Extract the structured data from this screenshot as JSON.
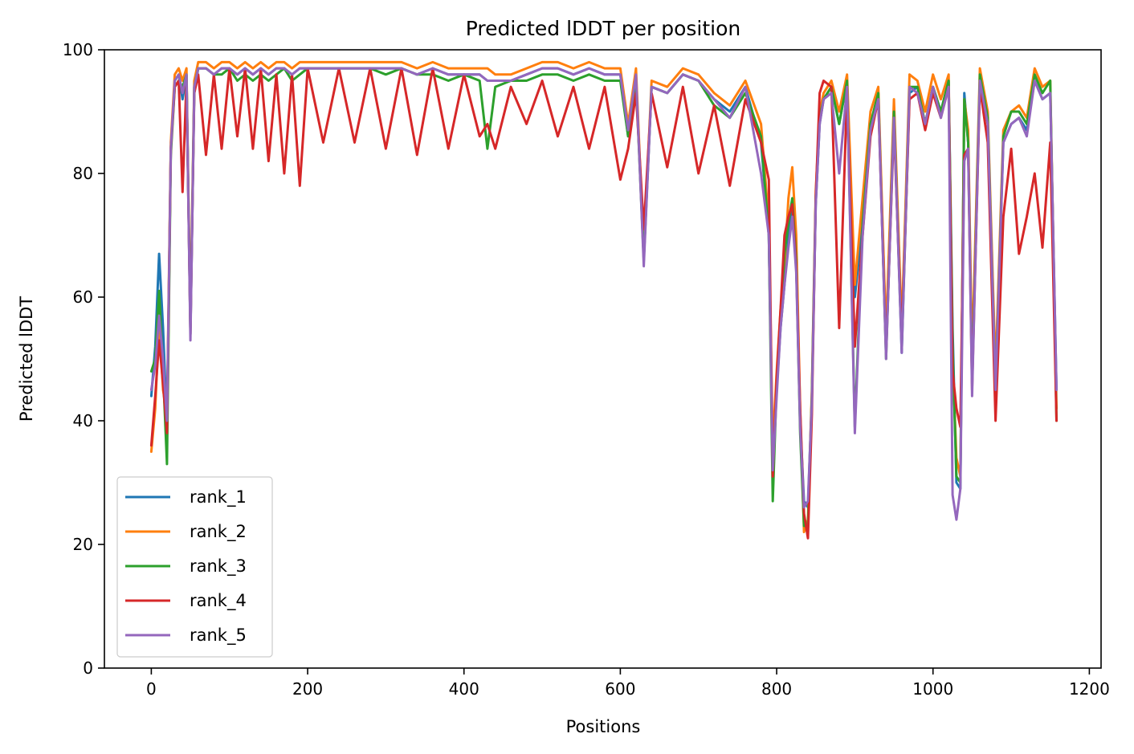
{
  "chart_data": {
    "type": "line",
    "title": "Predicted lDDT per position",
    "xlabel": "Positions",
    "ylabel": "Predicted lDDT",
    "xlim": [
      -60,
      1215
    ],
    "ylim": [
      0,
      100
    ],
    "xticks": [
      0,
      200,
      400,
      600,
      800,
      1000,
      1200
    ],
    "yticks": [
      0,
      20,
      40,
      60,
      80,
      100
    ],
    "grid": false,
    "legend": "lower-left",
    "x": [
      0,
      5,
      10,
      15,
      20,
      25,
      30,
      35,
      40,
      45,
      50,
      55,
      60,
      70,
      80,
      90,
      100,
      110,
      120,
      130,
      140,
      150,
      160,
      170,
      180,
      190,
      200,
      220,
      240,
      260,
      280,
      300,
      320,
      340,
      360,
      380,
      400,
      420,
      430,
      440,
      460,
      480,
      500,
      520,
      540,
      560,
      580,
      600,
      610,
      620,
      630,
      640,
      660,
      680,
      700,
      720,
      740,
      760,
      780,
      790,
      795,
      800,
      805,
      810,
      815,
      820,
      825,
      830,
      835,
      840,
      845,
      850,
      855,
      860,
      870,
      880,
      890,
      900,
      910,
      920,
      930,
      940,
      950,
      960,
      970,
      980,
      990,
      1000,
      1010,
      1020,
      1025,
      1030,
      1035,
      1040,
      1045,
      1050,
      1060,
      1070,
      1080,
      1090,
      1100,
      1110,
      1120,
      1130,
      1140,
      1150,
      1158
    ],
    "series": [
      {
        "name": "rank_1",
        "color": "#1f77b4",
        "values": [
          44,
          52,
          67,
          55,
          39,
          84,
          95,
          96,
          92,
          96,
          54,
          93,
          97,
          97,
          96,
          97,
          97,
          96,
          97,
          96,
          97,
          96,
          97,
          97,
          96,
          97,
          97,
          97,
          97,
          97,
          97,
          97,
          97,
          96,
          97,
          96,
          96,
          96,
          95,
          95,
          95,
          96,
          97,
          97,
          96,
          97,
          96,
          96,
          86,
          96,
          66,
          94,
          93,
          96,
          95,
          92,
          90,
          94,
          85,
          70,
          33,
          45,
          55,
          62,
          70,
          74,
          65,
          40,
          27,
          26,
          44,
          75,
          88,
          92,
          94,
          88,
          95,
          60,
          72,
          88,
          93,
          52,
          90,
          51,
          93,
          94,
          88,
          94,
          90,
          95,
          55,
          30,
          29,
          93,
          85,
          47,
          95,
          88,
          46,
          85,
          88,
          89,
          87,
          95,
          92,
          93,
          45
        ]
      },
      {
        "name": "rank_2",
        "color": "#ff7f0e",
        "values": [
          35,
          42,
          56,
          45,
          41,
          85,
          96,
          97,
          95,
          97,
          56,
          95,
          98,
          98,
          97,
          98,
          98,
          97,
          98,
          97,
          98,
          97,
          98,
          98,
          97,
          98,
          98,
          98,
          98,
          98,
          98,
          98,
          98,
          97,
          98,
          97,
          97,
          97,
          97,
          96,
          96,
          97,
          98,
          98,
          97,
          98,
          97,
          97,
          88,
          97,
          67,
          95,
          94,
          97,
          96,
          93,
          91,
          95,
          88,
          72,
          36,
          48,
          58,
          65,
          76,
          81,
          70,
          42,
          22,
          24,
          45,
          77,
          90,
          93,
          95,
          90,
          96,
          62,
          76,
          90,
          94,
          54,
          92,
          55,
          96,
          95,
          90,
          96,
          92,
          96,
          50,
          34,
          31,
          92,
          87,
          50,
          97,
          90,
          48,
          87,
          90,
          91,
          89,
          97,
          94,
          95,
          42
        ]
      },
      {
        "name": "rank_3",
        "color": "#2ca02c",
        "values": [
          48,
          50,
          61,
          48,
          33,
          83,
          94,
          95,
          94,
          96,
          55,
          94,
          97,
          97,
          96,
          96,
          97,
          95,
          96,
          95,
          96,
          95,
          96,
          97,
          95,
          96,
          97,
          97,
          97,
          97,
          97,
          96,
          97,
          96,
          96,
          95,
          96,
          95,
          84,
          94,
          95,
          95,
          96,
          96,
          95,
          96,
          95,
          95,
          86,
          95,
          66,
          94,
          93,
          96,
          95,
          91,
          89,
          93,
          86,
          70,
          27,
          46,
          56,
          67,
          72,
          76,
          66,
          38,
          23,
          23,
          44,
          76,
          89,
          92,
          94,
          88,
          95,
          39,
          72,
          88,
          93,
          50,
          90,
          52,
          94,
          94,
          88,
          94,
          90,
          95,
          52,
          31,
          30,
          92,
          85,
          46,
          96,
          89,
          45,
          86,
          90,
          90,
          88,
          96,
          93,
          95,
          40
        ]
      },
      {
        "name": "rank_4",
        "color": "#d62728",
        "values": [
          36,
          44,
          53,
          46,
          38,
          84,
          94,
          95,
          77,
          95,
          54,
          93,
          96,
          83,
          96,
          84,
          97,
          86,
          97,
          84,
          97,
          82,
          96,
          80,
          96,
          78,
          97,
          85,
          97,
          85,
          97,
          84,
          97,
          83,
          97,
          84,
          96,
          86,
          88,
          84,
          94,
          88,
          95,
          86,
          94,
          84,
          94,
          79,
          84,
          93,
          71,
          93,
          81,
          94,
          80,
          91,
          78,
          92,
          85,
          79,
          31,
          47,
          58,
          70,
          73,
          75,
          65,
          42,
          25,
          21,
          41,
          76,
          93,
          95,
          94,
          55,
          93,
          52,
          70,
          86,
          92,
          51,
          88,
          53,
          92,
          93,
          87,
          93,
          89,
          94,
          48,
          42,
          39,
          83,
          84,
          45,
          94,
          85,
          40,
          73,
          84,
          67,
          73,
          80,
          68,
          85,
          40
        ]
      },
      {
        "name": "rank_5",
        "color": "#9467bd",
        "values": [
          45,
          49,
          57,
          50,
          40,
          84,
          95,
          96,
          93,
          96,
          53,
          94,
          97,
          97,
          96,
          97,
          97,
          96,
          97,
          96,
          97,
          96,
          97,
          97,
          96,
          97,
          97,
          97,
          97,
          97,
          97,
          97,
          97,
          96,
          97,
          96,
          96,
          96,
          95,
          95,
          95,
          96,
          97,
          97,
          96,
          97,
          96,
          96,
          87,
          96,
          65,
          94,
          93,
          96,
          95,
          92,
          89,
          94,
          80,
          70,
          32,
          44,
          55,
          62,
          68,
          73,
          64,
          39,
          26,
          27,
          43,
          75,
          88,
          92,
          93,
          80,
          94,
          38,
          70,
          87,
          92,
          50,
          89,
          51,
          94,
          93,
          88,
          94,
          89,
          94,
          28,
          24,
          29,
          82,
          84,
          44,
          95,
          88,
          45,
          85,
          88,
          89,
          86,
          95,
          92,
          93,
          45
        ]
      }
    ]
  }
}
